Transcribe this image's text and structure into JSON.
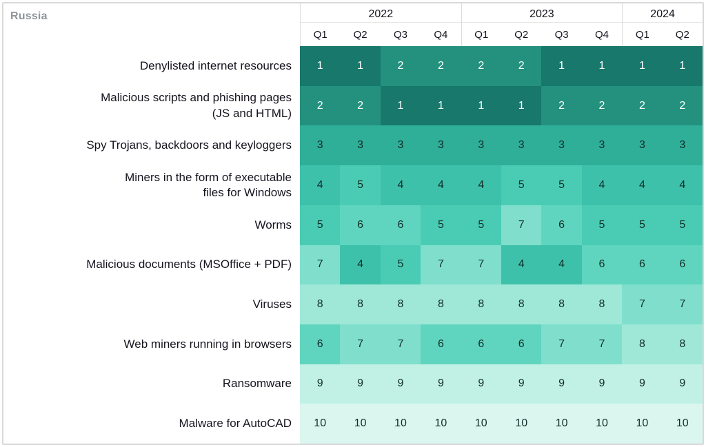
{
  "region_label": "Russia",
  "chart_data": {
    "type": "heatmap",
    "title": "Russia",
    "year_groups": [
      {
        "label": "2022",
        "quarters": [
          "Q1",
          "Q2",
          "Q3",
          "Q4"
        ]
      },
      {
        "label": "2023",
        "quarters": [
          "Q1",
          "Q2",
          "Q3",
          "Q4"
        ]
      },
      {
        "label": "2024",
        "quarters": [
          "Q1",
          "Q2"
        ]
      }
    ],
    "columns": [
      "2022 Q1",
      "2022 Q2",
      "2022 Q3",
      "2022 Q4",
      "2023 Q1",
      "2023 Q2",
      "2023 Q3",
      "2023 Q4",
      "2024 Q1",
      "2024 Q2"
    ],
    "rows": [
      {
        "label": "Denylisted internet resources",
        "values": [
          1,
          1,
          2,
          2,
          2,
          2,
          1,
          1,
          1,
          1
        ]
      },
      {
        "label": "Malicious scripts and phishing pages\n(JS and HTML)",
        "values": [
          2,
          2,
          1,
          1,
          1,
          1,
          2,
          2,
          2,
          2
        ]
      },
      {
        "label": "Spy Trojans, backdoors and keyloggers",
        "values": [
          3,
          3,
          3,
          3,
          3,
          3,
          3,
          3,
          3,
          3
        ]
      },
      {
        "label": "Miners in the form of executable\nfiles for Windows",
        "values": [
          4,
          5,
          4,
          4,
          4,
          5,
          5,
          4,
          4,
          4
        ]
      },
      {
        "label": "Worms",
        "values": [
          5,
          6,
          6,
          5,
          5,
          7,
          6,
          5,
          5,
          5
        ]
      },
      {
        "label": "Malicious documents (MSOffice + PDF)",
        "values": [
          7,
          4,
          5,
          7,
          7,
          4,
          4,
          6,
          6,
          6
        ]
      },
      {
        "label": "Viruses",
        "values": [
          8,
          8,
          8,
          8,
          8,
          8,
          8,
          8,
          7,
          7
        ]
      },
      {
        "label": "Web miners running in browsers",
        "values": [
          6,
          7,
          7,
          6,
          6,
          6,
          7,
          7,
          8,
          8
        ]
      },
      {
        "label": "Ransomware",
        "values": [
          9,
          9,
          9,
          9,
          9,
          9,
          9,
          9,
          9,
          9
        ]
      },
      {
        "label": "Malware for AutoCAD",
        "values": [
          10,
          10,
          10,
          10,
          10,
          10,
          10,
          10,
          10,
          10
        ]
      }
    ],
    "value_range": [
      1,
      10
    ],
    "color_scale": {
      "1": "#17786b",
      "2": "#23917e",
      "3": "#2fae98",
      "4": "#3ec1ab",
      "5": "#4accb4",
      "6": "#5fd5bf",
      "7": "#7fdfcc",
      "8": "#9fe8d8",
      "9": "#c1f0e5",
      "10": "#dbf6ee"
    },
    "cell_text_dark": "#122e28",
    "cell_text_light": "#ffffff",
    "white_text_max_rank": 2,
    "border_color": "#d9d9d9",
    "corner_label_color": "#90949a"
  }
}
